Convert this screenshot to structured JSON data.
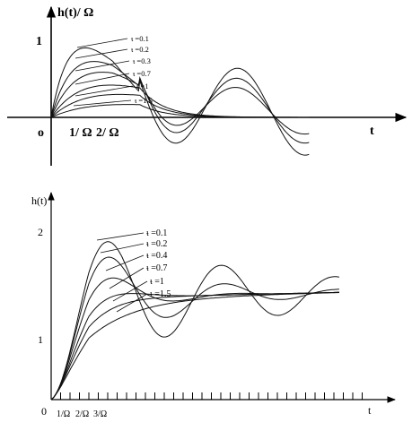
{
  "chart_data": [
    {
      "type": "line",
      "ylabel": "h(t)/ Ω",
      "xlabel": "t",
      "origin_label": "o",
      "y_tick_labels": [
        "1"
      ],
      "x_tick_labels": [
        "1/ Ω",
        "2/ Ω"
      ],
      "series_labels": [
        "ᵼ =0.1",
        "ᵼ =0.2",
        "ᵼ =0.3",
        "ᵼ =0.7",
        "ᵼ =1",
        "ᵼ =1.5"
      ],
      "zeta": [
        0.1,
        0.2,
        0.3,
        0.7,
        1,
        1.5
      ],
      "peak_heights": [
        0.97,
        0.78,
        0.63,
        0.45,
        0.32,
        0.18
      ],
      "xlim": [
        0,
        8.2
      ],
      "ylim": [
        -0.75,
        1.6
      ]
    },
    {
      "type": "line",
      "ylabel": "h(t)",
      "xlabel": "t",
      "origin_label": "0",
      "y_tick_labels": [
        "2",
        "1"
      ],
      "x_tick_labels": [
        "1/Ω",
        "2/Ω",
        "3/Ω"
      ],
      "series_labels": [
        "ᵼ =0.1",
        "ᵼ =0.2",
        "ᵼ =0.4",
        "ᵼ =0.7",
        "ᵼ =1",
        "ᵼ =1.5"
      ],
      "zeta": [
        0.1,
        0.2,
        0.4,
        0.7,
        1,
        1.5
      ],
      "overshoot": [
        0.73,
        0.53,
        0.25,
        0.05,
        0,
        0
      ],
      "xlim": [
        0,
        8.3
      ],
      "ylim": [
        0,
        2.22
      ]
    }
  ]
}
